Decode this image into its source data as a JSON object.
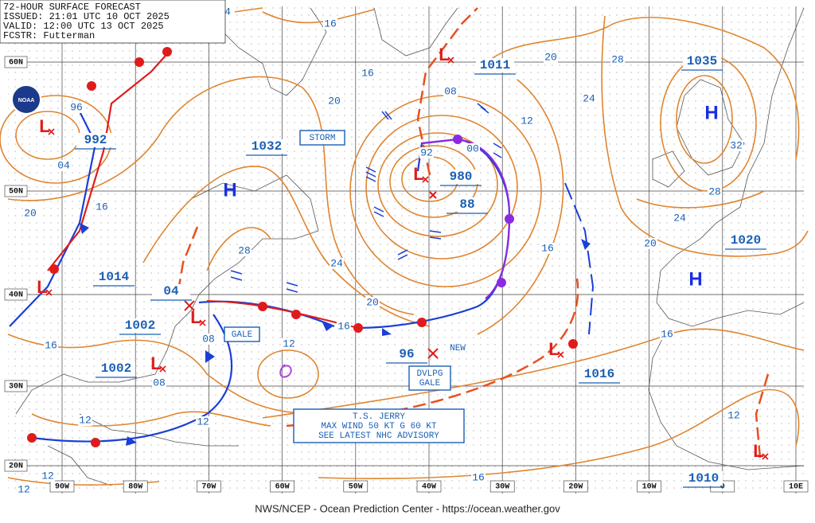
{
  "header": {
    "lines": [
      "72-HOUR SURFACE FORECAST",
      "ISSUED: 21:01 UTC 10 OCT 2025",
      "VALID: 12:00 UTC 13 OCT 2025",
      "FCSTR: Futterman"
    ]
  },
  "latitudes": [
    "60N",
    "50N",
    "40N",
    "30N",
    "20N"
  ],
  "longitudes": [
    "90W",
    "80W",
    "70W",
    "60W",
    "50W",
    "40W",
    "30W",
    "20W",
    "10W",
    "0",
    "10E"
  ],
  "highs": [
    "H",
    "H",
    "H"
  ],
  "lows": [
    "L",
    "L",
    "L",
    "L",
    "L",
    "L",
    "L",
    "L"
  ],
  "pressure_labels": [
    "1011",
    "1035",
    "992",
    "1032",
    "980",
    "88",
    "1014",
    "04",
    "1002",
    "1002",
    "96",
    "1020",
    "1016",
    "1010"
  ],
  "isobar_labels": [
    "16",
    "16",
    "20",
    "20",
    "28",
    "24",
    "12",
    "08",
    "00",
    "92",
    "16",
    "04",
    "20",
    "28",
    "24",
    "20",
    "16",
    "16",
    "20",
    "24",
    "28",
    "32",
    "16",
    "12",
    "08",
    "08",
    "16",
    "12",
    "12",
    "12",
    "16",
    "12",
    "12",
    "96",
    "4"
  ],
  "boxes": [
    [
      "STORM"
    ],
    [
      "GALE"
    ],
    [
      "DVLPG",
      "GALE"
    ],
    [
      "T.S. JERRY",
      "MAX WIND 50 KT G 60 KT",
      "SEE LATEST NHC ADVISORY"
    ]
  ],
  "annotations": [
    "NEW"
  ],
  "logo": "NOAA",
  "footer": "NWS/NCEP - Ocean Prediction Center - https://ocean.weather.gov"
}
